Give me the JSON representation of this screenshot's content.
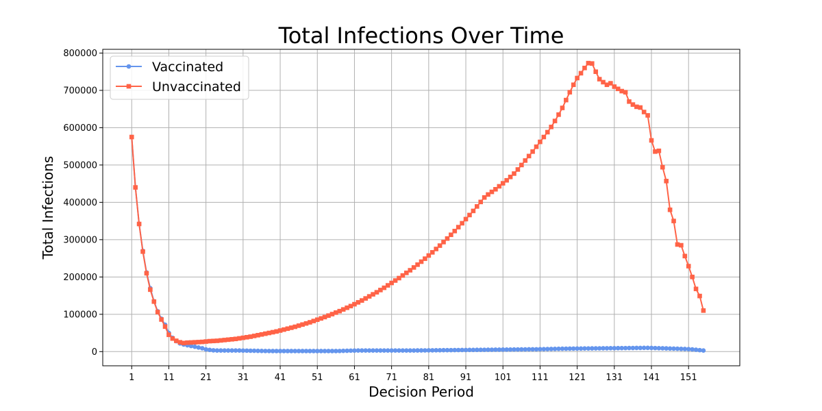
{
  "chart_data": {
    "type": "line",
    "title": "Total Infections Over Time",
    "xlabel": "Decision Period",
    "ylabel": "Total Infections",
    "xlim": [
      -6.8,
      164.8
    ],
    "ylim": [
      -38000,
      810000
    ],
    "xticks": [
      1,
      11,
      21,
      31,
      41,
      51,
      61,
      71,
      81,
      91,
      101,
      111,
      121,
      131,
      141,
      151
    ],
    "yticks": [
      0,
      100000,
      200000,
      300000,
      400000,
      500000,
      600000,
      700000,
      800000
    ],
    "ytick_labels": [
      "0",
      "100000",
      "200000",
      "300000",
      "400000",
      "500000",
      "600000",
      "700000",
      "800000"
    ],
    "grid": true,
    "legend_position": "top-left",
    "x": [
      1,
      2,
      3,
      4,
      5,
      6,
      7,
      8,
      9,
      10,
      11,
      12,
      13,
      14,
      15,
      16,
      17,
      18,
      19,
      20,
      21,
      22,
      23,
      24,
      25,
      26,
      27,
      28,
      29,
      30,
      31,
      32,
      33,
      34,
      35,
      36,
      37,
      38,
      39,
      40,
      41,
      42,
      43,
      44,
      45,
      46,
      47,
      48,
      49,
      50,
      51,
      52,
      53,
      54,
      55,
      56,
      57,
      58,
      59,
      60,
      61,
      62,
      63,
      64,
      65,
      66,
      67,
      68,
      69,
      70,
      71,
      72,
      73,
      74,
      75,
      76,
      77,
      78,
      79,
      80,
      81,
      82,
      83,
      84,
      85,
      86,
      87,
      88,
      89,
      90,
      91,
      92,
      93,
      94,
      95,
      96,
      97,
      98,
      99,
      100,
      101,
      102,
      103,
      104,
      105,
      106,
      107,
      108,
      109,
      110,
      111,
      112,
      113,
      114,
      115,
      116,
      117,
      118,
      119,
      120,
      121,
      122,
      123,
      124,
      125,
      126,
      127,
      128,
      129,
      130,
      131,
      132,
      133,
      134,
      135,
      136,
      137,
      138,
      139,
      140,
      141,
      142,
      143,
      144,
      145,
      146,
      147,
      148,
      149,
      150,
      151,
      152,
      153,
      154,
      155
    ],
    "series": [
      {
        "name": "Vaccinated",
        "color": "#6495ED",
        "marker": "circle",
        "values": [
          575000,
          440000,
          342000,
          270000,
          212000,
          170000,
          135000,
          108000,
          88000,
          72000,
          50000,
          37000,
          28000,
          22000,
          19000,
          17000,
          15000,
          13000,
          11000,
          9000,
          6000,
          4500,
          3500,
          3000,
          3000,
          3000,
          3000,
          3000,
          3000,
          3000,
          2800,
          2600,
          2400,
          2200,
          2000,
          1800,
          1700,
          1600,
          1500,
          1500,
          1500,
          1500,
          1500,
          1500,
          1500,
          1500,
          1500,
          1500,
          1500,
          1500,
          1500,
          1500,
          1500,
          1500,
          1500,
          1500,
          1700,
          2000,
          2300,
          2600,
          2800,
          2900,
          3000,
          3000,
          3000,
          3000,
          3000,
          3000,
          3000,
          3000,
          3000,
          3000,
          3000,
          3000,
          3000,
          3000,
          3000,
          3100,
          3200,
          3300,
          3400,
          3500,
          3600,
          3700,
          3800,
          3900,
          4000,
          4100,
          4200,
          4300,
          4400,
          4500,
          4600,
          4700,
          4800,
          4900,
          5000,
          5100,
          5200,
          5300,
          5400,
          5500,
          5600,
          5700,
          5800,
          5900,
          6000,
          6100,
          6200,
          6300,
          6500,
          6700,
          6900,
          7100,
          7300,
          7500,
          7700,
          7900,
          8000,
          8100,
          8200,
          8300,
          8400,
          8500,
          8600,
          8700,
          8800,
          8900,
          9000,
          9100,
          9200,
          9300,
          9400,
          9500,
          9600,
          9700,
          9800,
          9900,
          10000,
          10000,
          9800,
          9500,
          9200,
          8900,
          8600,
          8300,
          8000,
          7700,
          7400,
          7100,
          6700,
          6000,
          5000,
          4000,
          3000
        ]
      },
      {
        "name": "Unvaccinated",
        "color": "#FF6347",
        "marker": "square",
        "values": [
          575000,
          440000,
          342000,
          268000,
          210000,
          166000,
          134000,
          106000,
          86000,
          67000,
          45000,
          35000,
          29000,
          25000,
          23000,
          24000,
          24500,
          25000,
          25500,
          26000,
          27000,
          28000,
          28500,
          29000,
          30000,
          31000,
          32000,
          33000,
          34000,
          35500,
          37000,
          38500,
          40000,
          42000,
          44000,
          46000,
          48000,
          50000,
          52000,
          54000,
          56500,
          59000,
          61500,
          64000,
          66500,
          69500,
          72500,
          75500,
          78500,
          82000,
          85500,
          89000,
          92500,
          96500,
          100500,
          104500,
          108500,
          113000,
          117500,
          122000,
          127000,
          132000,
          137000,
          142500,
          148000,
          153500,
          159000,
          165000,
          171000,
          177500,
          184000,
          190500,
          197000,
          204000,
          211000,
          218000,
          225500,
          233000,
          241000,
          249000,
          257500,
          266000,
          275000,
          284000,
          293500,
          303000,
          313000,
          323000,
          333500,
          344000,
          355000,
          366000,
          377000,
          389000,
          401000,
          413000,
          421000,
          428000,
          435000,
          443000,
          451000,
          459000,
          468000,
          477000,
          488000,
          500000,
          512000,
          524000,
          536000,
          549000,
          562000,
          575000,
          588000,
          602000,
          618000,
          635000,
          653000,
          674000,
          695000,
          715000,
          733000,
          746000,
          760000,
          773000,
          772000,
          750000,
          730000,
          722000,
          715000,
          719000,
          710000,
          704000,
          698000,
          695000,
          670000,
          662000,
          656000,
          654000,
          642000,
          633000,
          566000,
          536000,
          538000,
          494000,
          457000,
          380000,
          350000,
          287000,
          285000,
          256000,
          229000,
          200000,
          168000,
          149000,
          110000
        ]
      }
    ]
  }
}
